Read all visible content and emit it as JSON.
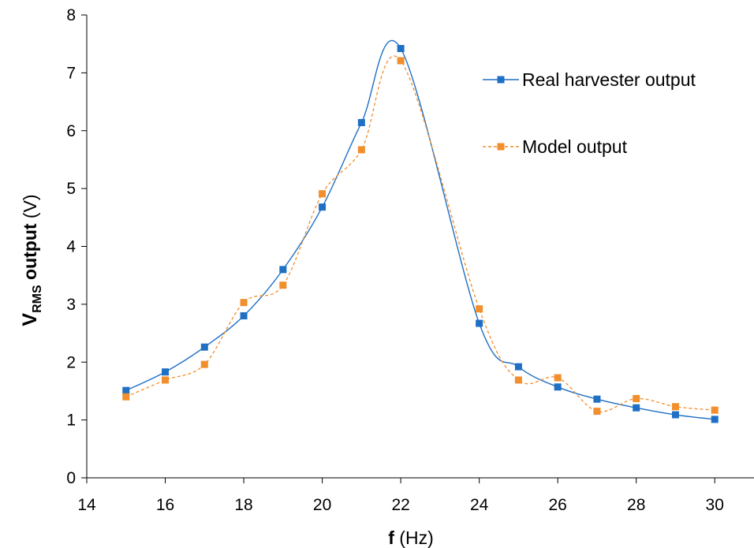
{
  "chart_data": {
    "type": "line",
    "title": "",
    "xlabel": {
      "bold": "f",
      "rest": " (Hz)"
    },
    "ylabel": {
      "main": "V",
      "sub": "RMS",
      "bold_rest": " output",
      "rest": " (V)"
    },
    "xlim": [
      14,
      31
    ],
    "ylim": [
      0,
      8
    ],
    "xticks": [
      14,
      16,
      18,
      20,
      22,
      24,
      26,
      28,
      30
    ],
    "yticks": [
      0,
      1,
      2,
      3,
      4,
      5,
      6,
      7,
      8
    ],
    "grid": false,
    "legend_position": "right",
    "series": [
      {
        "name": "Real harvester output",
        "color": "#1f6fc5",
        "line": "solid-smooth",
        "marker": "square",
        "x": [
          15,
          16,
          17,
          18,
          19,
          20,
          21,
          22,
          24,
          25,
          26,
          27,
          28,
          29,
          30
        ],
        "y": [
          1.51,
          1.83,
          2.26,
          2.8,
          3.6,
          4.68,
          6.14,
          7.42,
          2.67,
          1.92,
          1.57,
          1.36,
          1.21,
          1.09,
          1.01
        ]
      },
      {
        "name": "Model output",
        "color": "#f28e2b",
        "line": "dashed-smooth",
        "marker": "square",
        "x": [
          15,
          16,
          17,
          18,
          19,
          20,
          21,
          22,
          24,
          25,
          26,
          27,
          28,
          29,
          30
        ],
        "y": [
          1.4,
          1.69,
          1.96,
          3.03,
          3.33,
          4.91,
          5.67,
          7.21,
          2.92,
          1.69,
          1.73,
          1.15,
          1.37,
          1.23,
          1.17
        ]
      }
    ]
  }
}
